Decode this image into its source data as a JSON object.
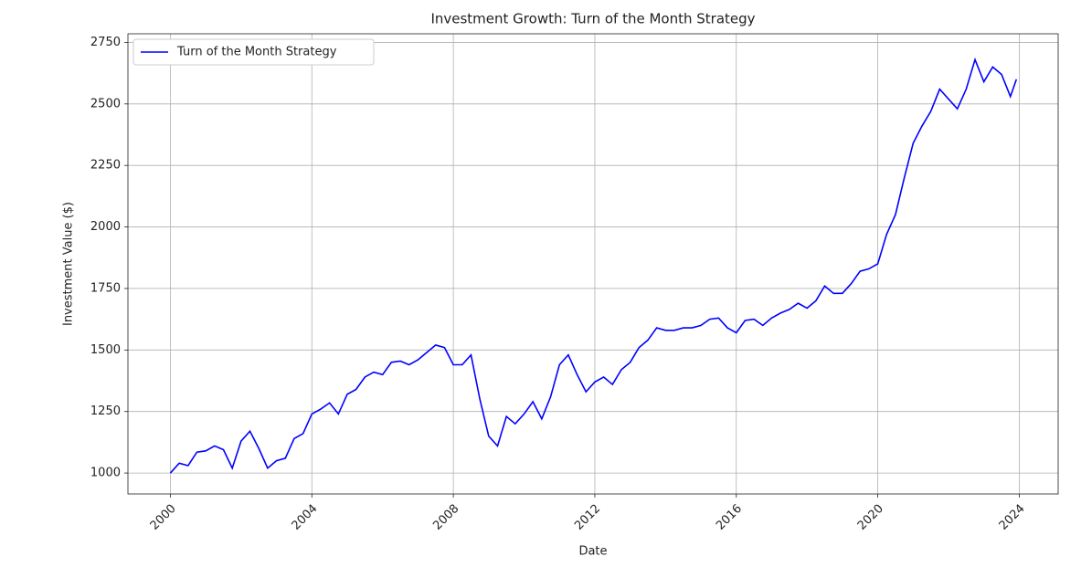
{
  "chart_data": {
    "type": "line",
    "title": "Investment Growth: Turn of the Month Strategy",
    "x_label": "Date",
    "y_label": "Investment Value ($)",
    "x": [
      2000.0,
      2000.25,
      2000.5,
      2000.75,
      2001.0,
      2001.25,
      2001.5,
      2001.75,
      2002.0,
      2002.25,
      2002.5,
      2002.75,
      2003.0,
      2003.25,
      2003.5,
      2003.75,
      2004.0,
      2004.25,
      2004.5,
      2004.75,
      2005.0,
      2005.25,
      2005.5,
      2005.75,
      2006.0,
      2006.25,
      2006.5,
      2006.75,
      2007.0,
      2007.25,
      2007.5,
      2007.75,
      2008.0,
      2008.25,
      2008.5,
      2008.75,
      2009.0,
      2009.25,
      2009.5,
      2009.75,
      2010.0,
      2010.25,
      2010.5,
      2010.75,
      2011.0,
      2011.25,
      2011.5,
      2011.75,
      2012.0,
      2012.25,
      2012.5,
      2012.75,
      2013.0,
      2013.25,
      2013.5,
      2013.75,
      2014.0,
      2014.25,
      2014.5,
      2014.75,
      2015.0,
      2015.25,
      2015.5,
      2015.75,
      2016.0,
      2016.25,
      2016.5,
      2016.75,
      2017.0,
      2017.25,
      2017.5,
      2017.75,
      2018.0,
      2018.25,
      2018.5,
      2018.75,
      2019.0,
      2019.25,
      2019.5,
      2019.75,
      2020.0,
      2020.25,
      2020.5,
      2020.75,
      2021.0,
      2021.25,
      2021.5,
      2021.75,
      2022.0,
      2022.25,
      2022.5,
      2022.75,
      2023.0,
      2023.25,
      2023.5,
      2023.75,
      2023.92
    ],
    "series": [
      {
        "name": "Turn of the Month Strategy",
        "color": "#0000ff",
        "values": [
          1000,
          1040,
          1030,
          1085,
          1090,
          1110,
          1095,
          1020,
          1130,
          1170,
          1100,
          1020,
          1050,
          1060,
          1140,
          1160,
          1240,
          1260,
          1285,
          1240,
          1320,
          1340,
          1390,
          1410,
          1400,
          1450,
          1455,
          1440,
          1460,
          1490,
          1520,
          1510,
          1440,
          1440,
          1480,
          1300,
          1150,
          1110,
          1230,
          1200,
          1240,
          1290,
          1220,
          1310,
          1440,
          1480,
          1400,
          1330,
          1370,
          1390,
          1360,
          1420,
          1450,
          1510,
          1540,
          1590,
          1580,
          1580,
          1590,
          1590,
          1600,
          1625,
          1630,
          1590,
          1570,
          1620,
          1625,
          1600,
          1630,
          1650,
          1665,
          1690,
          1670,
          1700,
          1760,
          1730,
          1730,
          1770,
          1820,
          1830,
          1850,
          1970,
          2050,
          2200,
          2340,
          2410,
          2470,
          2560,
          2520,
          2480,
          2560,
          2680,
          2590,
          2650,
          2620,
          2530,
          2600
        ]
      }
    ],
    "xlim": [
      1998.8,
      2025.1
    ],
    "xticks": [
      2000,
      2004,
      2008,
      2012,
      2016,
      2020,
      2024
    ],
    "ylim": [
      915,
      2785
    ],
    "yticks": [
      1000,
      1250,
      1500,
      1750,
      2000,
      2250,
      2500,
      2750
    ],
    "grid": true,
    "legend": "upper left"
  }
}
